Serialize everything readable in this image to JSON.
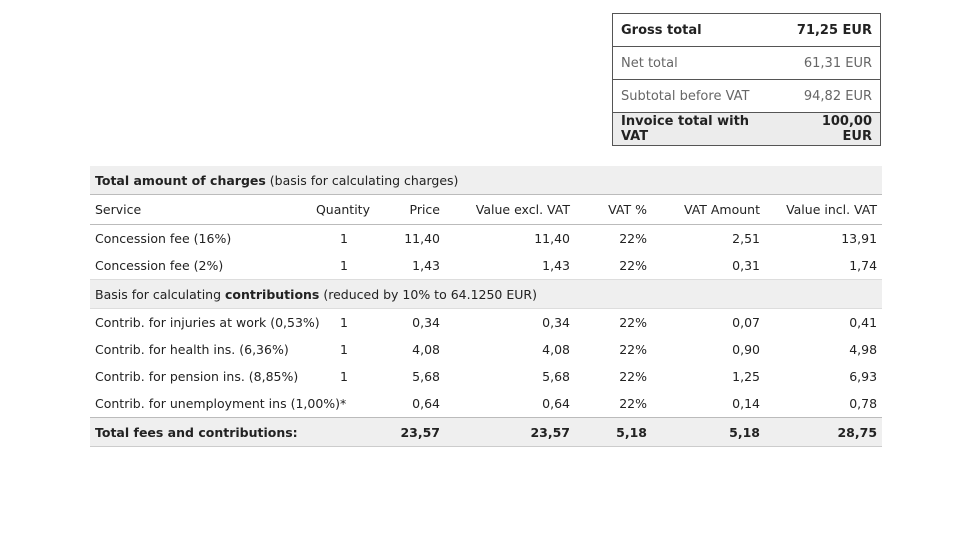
{
  "summary": [
    {
      "label": "Gross total",
      "value": "71,25 EUR",
      "style": "bold"
    },
    {
      "label": "Net total",
      "value": "61,31 EUR",
      "style": "muted"
    },
    {
      "label": "Subtotal before VAT",
      "value": "94,82 EUR",
      "style": "muted"
    },
    {
      "label": "Invoice total with VAT",
      "value": "100,00 EUR",
      "style": "bold grey"
    }
  ],
  "charges": {
    "title_bold": "Total amount of charges",
    "title_rest": " (basis for calculating charges)",
    "columns": [
      "Service",
      "Quantity",
      "Price",
      "Value excl. VAT",
      "VAT %",
      "VAT Amount",
      "Value incl. VAT"
    ],
    "fee_rows": [
      [
        "Concession fee (16%)",
        "1",
        "11,40",
        "11,40",
        "22%",
        "2,51",
        "13,91"
      ],
      [
        "Concession fee (2%)",
        "1",
        "1,43",
        "1,43",
        "22%",
        "0,31",
        "1,74"
      ]
    ],
    "contrib_title_pre": "Basis for calculating ",
    "contrib_title_bold": "contributions",
    "contrib_title_post": " (reduced by 10% to 64.1250 EUR)",
    "contrib_rows": [
      [
        "Contrib. for injuries at work (0,53%)",
        "1",
        "0,34",
        "0,34",
        "22%",
        "0,07",
        "0,41"
      ],
      [
        "Contrib. for health ins. (6,36%)",
        "1",
        "4,08",
        "4,08",
        "22%",
        "0,90",
        "4,98"
      ],
      [
        "Contrib. for pension ins. (8,85%)",
        "1",
        "5,68",
        "5,68",
        "22%",
        "1,25",
        "6,93"
      ],
      [
        "Contrib. for unemployment ins (1,00%)*",
        "",
        "0,64",
        "0,64",
        "22%",
        "0,14",
        "0,78"
      ]
    ],
    "total": [
      "Total fees and contributions:",
      "",
      "23,57",
      "23,57",
      "5,18",
      "5,18",
      "28,75"
    ]
  }
}
